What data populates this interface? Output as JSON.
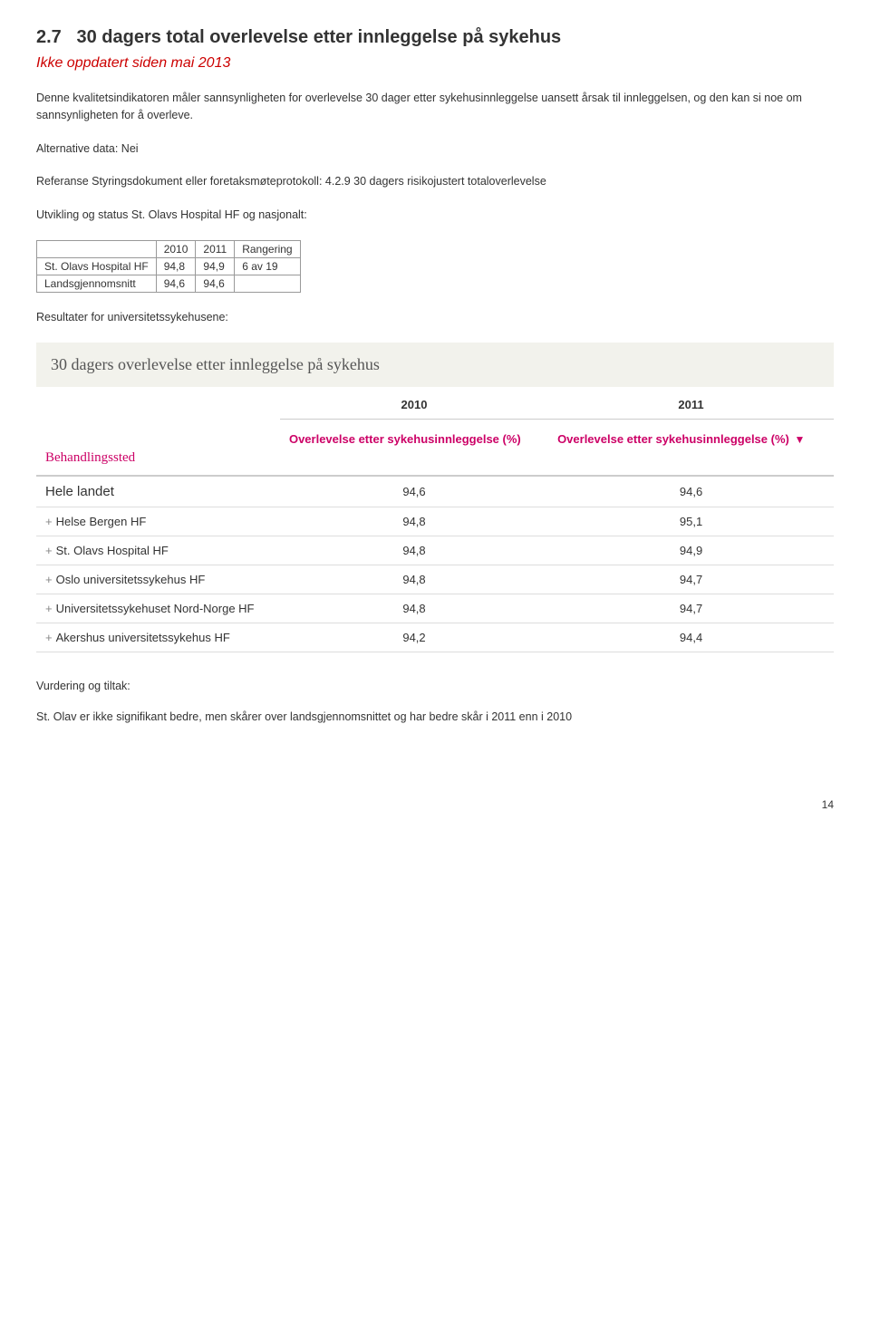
{
  "section": {
    "number": "2.7",
    "title": "30 dagers total overlevelse etter innleggelse på sykehus",
    "subtitle": "Ikke oppdatert siden mai 2013",
    "intro": "Denne kvalitetsindikatoren måler sannsynligheten for overlevelse 30 dager etter sykehusinnleggelse uansett årsak til innleggelsen, og den kan si noe om sannsynligheten for å overleve.",
    "alt_data": "Alternative data: Nei",
    "referanse": "Referanse Styringsdokument eller foretaksmøteprotokoll: 4.2.9 30 dagers risikojustert totaloverlevelse",
    "utvikling": "Utvikling og status St. Olavs Hospital HF og nasjonalt:"
  },
  "mini_table": {
    "headers": [
      "",
      "2010",
      "2011",
      "Rangering"
    ],
    "rows": [
      [
        "St. Olavs Hospital HF",
        "94,8",
        "94,9",
        "6 av 19"
      ],
      [
        "Landsgjennomsnitt",
        "94,6",
        "94,6",
        ""
      ]
    ]
  },
  "resultater_label": "Resultater for universitetssykehusene:",
  "result_block": {
    "header": "30 dagers overlevelse etter innleggelse på sykehus",
    "year1": "2010",
    "year2": "2011",
    "metric_label": "Overlevelse etter sykehusinnleggelse (%)",
    "first_col_label": "Behandlingssted",
    "rows": [
      {
        "name": "Hele landet",
        "v2010": "94,6",
        "v2011": "94,6",
        "landet": true,
        "expand": false
      },
      {
        "name": "Helse Bergen HF",
        "v2010": "94,8",
        "v2011": "95,1",
        "landet": false,
        "expand": true
      },
      {
        "name": "St. Olavs Hospital HF",
        "v2010": "94,8",
        "v2011": "94,9",
        "landet": false,
        "expand": true
      },
      {
        "name": "Oslo universitetssykehus HF",
        "v2010": "94,8",
        "v2011": "94,7",
        "landet": false,
        "expand": true
      },
      {
        "name": "Universitetssykehuset Nord-Norge HF",
        "v2010": "94,8",
        "v2011": "94,7",
        "landet": false,
        "expand": true
      },
      {
        "name": "Akershus universitetssykehus HF",
        "v2010": "94,2",
        "v2011": "94,4",
        "landet": false,
        "expand": true
      }
    ]
  },
  "vurdering": {
    "head": "Vurdering og tiltak:",
    "body": "St. Olav er ikke signifikant bedre, men skårer over landsgjennomsnittet og har bedre skår i 2011 enn i 2010"
  },
  "page_number": "14"
}
